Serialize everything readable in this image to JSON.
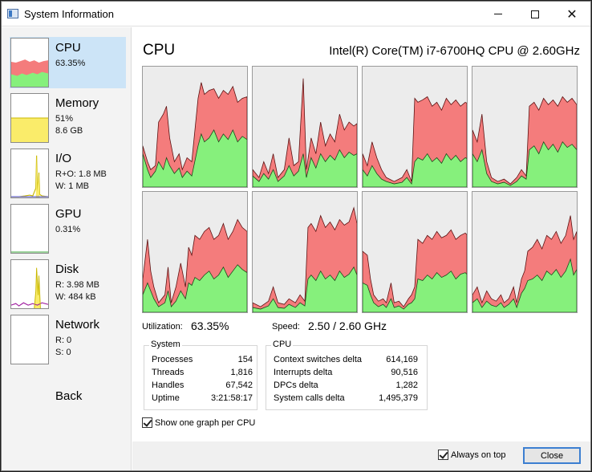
{
  "window": {
    "title": "System Information"
  },
  "sidebar": {
    "items": [
      {
        "label": "CPU",
        "lines": [
          "63.35%"
        ]
      },
      {
        "label": "Memory",
        "lines": [
          "51%",
          "8.6 GB"
        ]
      },
      {
        "label": "I/O",
        "lines": [
          "R+O: 1.8 MB",
          "W: 1 MB"
        ]
      },
      {
        "label": "GPU",
        "lines": [
          "0.31%"
        ]
      },
      {
        "label": "Disk",
        "lines": [
          "R: 3.98 MB",
          "W: 484 kB"
        ]
      },
      {
        "label": "Network",
        "lines": [
          "R: 0",
          "S: 0"
        ]
      }
    ],
    "back_label": "Back"
  },
  "main": {
    "title": "CPU",
    "cpu_model": "Intel(R) Core(TM) i7-6700HQ CPU @ 2.60GHz",
    "utilization_label": "Utilization:",
    "utilization_value": "63.35%",
    "speed_label": "Speed:",
    "speed_value": "2.50 / 2.60 GHz",
    "system_group": {
      "title": "System",
      "rows": [
        {
          "label": "Processes",
          "value": "154"
        },
        {
          "label": "Threads",
          "value": "1,816"
        },
        {
          "label": "Handles",
          "value": "67,542"
        },
        {
          "label": "Uptime",
          "value": "3:21:58:17"
        }
      ]
    },
    "cpu_group": {
      "title": "CPU",
      "rows": [
        {
          "label": "Context switches delta",
          "value": "614,169"
        },
        {
          "label": "Interrupts delta",
          "value": "90,516"
        },
        {
          "label": "DPCs delta",
          "value": "1,282"
        },
        {
          "label": "System calls delta",
          "value": "1,495,379"
        }
      ]
    },
    "one_graph_per_cpu_label": "Show one graph per CPU"
  },
  "footer": {
    "always_on_top_label": "Always on top",
    "close_label": "Close"
  },
  "colors": {
    "kernel_red": "#f47c7c",
    "user_green": "#86f07c",
    "selected_bg": "#cce4f7",
    "memory_yellow": "#faec6a"
  }
}
